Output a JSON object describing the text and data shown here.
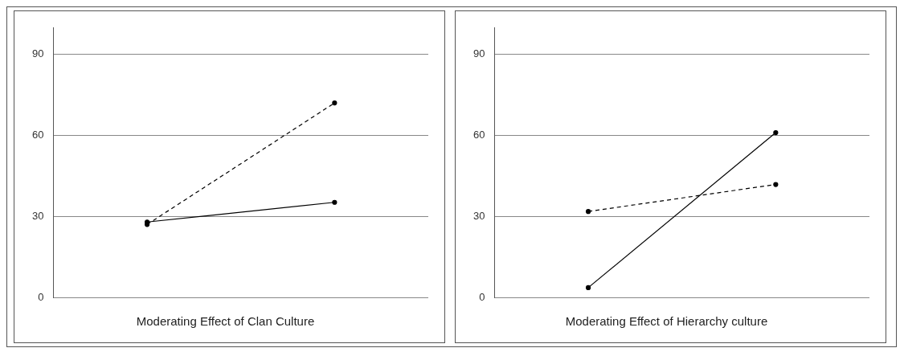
{
  "chart_data": [
    {
      "type": "line",
      "title": "Moderating Effect of Clan Culture",
      "categories": [
        null,
        null
      ],
      "ylim": [
        0,
        100
      ],
      "yticks": [
        0,
        30,
        60,
        90
      ],
      "grid": "y",
      "marker": "circle",
      "tick_labels": "y",
      "series": [
        {
          "color": "#000000",
          "line_style": "solid",
          "values": [
            27.9,
            35.2
          ]
        },
        {
          "color": "#000000",
          "line_style": "dashed",
          "values": [
            27,
            72
          ]
        }
      ]
    },
    {
      "type": "line",
      "title": "Moderating Effect of Hierarchy culture",
      "categories": [
        null,
        null
      ],
      "ylim": [
        0,
        100
      ],
      "yticks": [
        0,
        30,
        60,
        90
      ],
      "grid": "y",
      "marker": "circle",
      "tick_labels": "y",
      "series": [
        {
          "color": "#000000",
          "line_style": "solid",
          "values": [
            3.6,
            61
          ]
        },
        {
          "color": "#000000",
          "line_style": "dashed",
          "values": [
            31.8,
            41.8
          ]
        }
      ]
    }
  ]
}
